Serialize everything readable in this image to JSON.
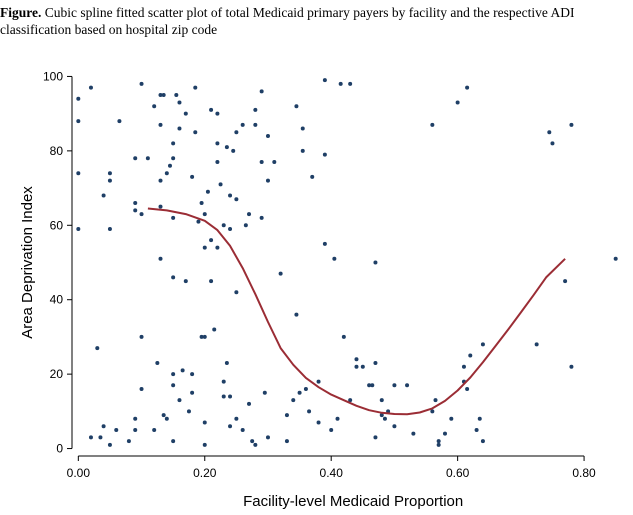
{
  "caption": {
    "prefix": "Figure.",
    "text": "Cubic spline fitted scatter plot of total Medicaid primary payers by facility and the respective ADI classification based on hospital zip code"
  },
  "chart_data": {
    "type": "scatter",
    "xlabel": "Facility-level Medicaid Proportion",
    "ylabel": "Area Deprivation Index",
    "xlim": [
      -0.01,
      0.86
    ],
    "ylim": [
      -2,
      102
    ],
    "xticks": [
      0,
      0.2,
      0.4,
      0.6,
      0.8
    ],
    "xtick_labels": [
      "0.00",
      "0.20",
      "0.40",
      "0.60",
      "0.80"
    ],
    "yticks": [
      0,
      20,
      40,
      60,
      80,
      100
    ],
    "ytick_labels": [
      "0",
      "20",
      "40",
      "60",
      "80",
      "100"
    ],
    "grid": false,
    "legend": "none",
    "colors": {
      "points": "#1f3f66",
      "spline": "#9b2d35"
    },
    "points": [
      [
        0.0,
        94
      ],
      [
        0.0,
        88
      ],
      [
        0.0,
        74
      ],
      [
        0.0,
        59
      ],
      [
        0.02,
        97
      ],
      [
        0.02,
        3
      ],
      [
        0.03,
        27
      ],
      [
        0.035,
        3
      ],
      [
        0.04,
        68
      ],
      [
        0.04,
        6
      ],
      [
        0.05,
        74
      ],
      [
        0.05,
        72
      ],
      [
        0.05,
        59
      ],
      [
        0.05,
        1
      ],
      [
        0.06,
        5
      ],
      [
        0.065,
        88
      ],
      [
        0.08,
        2
      ],
      [
        0.09,
        78
      ],
      [
        0.09,
        66
      ],
      [
        0.09,
        64
      ],
      [
        0.09,
        8
      ],
      [
        0.09,
        5
      ],
      [
        0.1,
        98
      ],
      [
        0.1,
        63
      ],
      [
        0.1,
        30
      ],
      [
        0.1,
        16
      ],
      [
        0.11,
        78
      ],
      [
        0.12,
        92
      ],
      [
        0.12,
        5
      ],
      [
        0.125,
        23
      ],
      [
        0.13,
        95
      ],
      [
        0.13,
        87
      ],
      [
        0.13,
        65
      ],
      [
        0.13,
        72
      ],
      [
        0.135,
        95
      ],
      [
        0.13,
        51
      ],
      [
        0.135,
        9
      ],
      [
        0.14,
        8
      ],
      [
        0.14,
        74
      ],
      [
        0.145,
        76
      ],
      [
        0.15,
        82
      ],
      [
        0.15,
        78
      ],
      [
        0.15,
        62
      ],
      [
        0.15,
        46
      ],
      [
        0.15,
        20
      ],
      [
        0.15,
        17
      ],
      [
        0.15,
        2
      ],
      [
        0.155,
        95
      ],
      [
        0.16,
        93
      ],
      [
        0.16,
        86
      ],
      [
        0.16,
        13
      ],
      [
        0.165,
        21
      ],
      [
        0.17,
        90
      ],
      [
        0.17,
        45
      ],
      [
        0.175,
        10
      ],
      [
        0.18,
        20
      ],
      [
        0.18,
        15
      ],
      [
        0.18,
        73
      ],
      [
        0.185,
        85
      ],
      [
        0.185,
        97
      ],
      [
        0.19,
        61
      ],
      [
        0.195,
        66
      ],
      [
        0.195,
        30
      ],
      [
        0.2,
        63
      ],
      [
        0.2,
        54
      ],
      [
        0.2,
        30
      ],
      [
        0.2,
        7
      ],
      [
        0.2,
        1
      ],
      [
        0.205,
        69
      ],
      [
        0.21,
        91
      ],
      [
        0.21,
        56
      ],
      [
        0.21,
        45
      ],
      [
        0.215,
        32
      ],
      [
        0.22,
        90
      ],
      [
        0.22,
        82
      ],
      [
        0.22,
        77
      ],
      [
        0.22,
        54
      ],
      [
        0.225,
        71
      ],
      [
        0.23,
        60
      ],
      [
        0.23,
        18
      ],
      [
        0.23,
        14
      ],
      [
        0.235,
        81
      ],
      [
        0.235,
        23
      ],
      [
        0.24,
        68
      ],
      [
        0.24,
        59
      ],
      [
        0.24,
        14
      ],
      [
        0.24,
        6
      ],
      [
        0.245,
        80
      ],
      [
        0.25,
        85
      ],
      [
        0.25,
        67
      ],
      [
        0.25,
        42
      ],
      [
        0.25,
        8
      ],
      [
        0.26,
        87
      ],
      [
        0.26,
        5
      ],
      [
        0.265,
        60
      ],
      [
        0.27,
        63
      ],
      [
        0.27,
        12
      ],
      [
        0.275,
        2
      ],
      [
        0.28,
        1
      ],
      [
        0.28,
        91
      ],
      [
        0.28,
        87
      ],
      [
        0.29,
        96
      ],
      [
        0.29,
        77
      ],
      [
        0.29,
        62
      ],
      [
        0.295,
        15
      ],
      [
        0.3,
        84
      ],
      [
        0.3,
        72
      ],
      [
        0.3,
        3
      ],
      [
        0.31,
        77
      ],
      [
        0.32,
        47
      ],
      [
        0.33,
        9
      ],
      [
        0.33,
        2
      ],
      [
        0.34,
        13
      ],
      [
        0.345,
        92
      ],
      [
        0.345,
        36
      ],
      [
        0.35,
        15
      ],
      [
        0.355,
        86
      ],
      [
        0.355,
        80
      ],
      [
        0.36,
        16
      ],
      [
        0.365,
        10
      ],
      [
        0.37,
        73
      ],
      [
        0.38,
        18
      ],
      [
        0.38,
        7
      ],
      [
        0.39,
        99
      ],
      [
        0.39,
        79
      ],
      [
        0.39,
        55
      ],
      [
        0.4,
        5
      ],
      [
        0.405,
        51
      ],
      [
        0.41,
        8
      ],
      [
        0.415,
        98
      ],
      [
        0.42,
        30
      ],
      [
        0.43,
        13
      ],
      [
        0.43,
        98
      ],
      [
        0.44,
        24
      ],
      [
        0.44,
        22
      ],
      [
        0.45,
        22
      ],
      [
        0.46,
        17
      ],
      [
        0.465,
        17
      ],
      [
        0.47,
        50
      ],
      [
        0.47,
        23
      ],
      [
        0.47,
        3
      ],
      [
        0.48,
        13
      ],
      [
        0.48,
        9
      ],
      [
        0.485,
        8
      ],
      [
        0.49,
        10
      ],
      [
        0.5,
        17
      ],
      [
        0.5,
        6
      ],
      [
        0.52,
        17
      ],
      [
        0.53,
        4
      ],
      [
        0.56,
        87
      ],
      [
        0.56,
        10
      ],
      [
        0.565,
        13
      ],
      [
        0.57,
        2
      ],
      [
        0.57,
        1
      ],
      [
        0.58,
        4
      ],
      [
        0.59,
        8
      ],
      [
        0.6,
        93
      ],
      [
        0.61,
        18
      ],
      [
        0.61,
        22
      ],
      [
        0.615,
        16
      ],
      [
        0.615,
        97
      ],
      [
        0.62,
        25
      ],
      [
        0.63,
        5
      ],
      [
        0.635,
        8
      ],
      [
        0.64,
        28
      ],
      [
        0.64,
        2
      ],
      [
        0.725,
        28
      ],
      [
        0.745,
        85
      ],
      [
        0.75,
        82
      ],
      [
        0.77,
        45
      ],
      [
        0.78,
        87
      ],
      [
        0.78,
        22
      ],
      [
        0.85,
        51
      ]
    ],
    "spline": [
      [
        0.11,
        64.5
      ],
      [
        0.14,
        64.0
      ],
      [
        0.17,
        63.0
      ],
      [
        0.2,
        61.2
      ],
      [
        0.22,
        58.7
      ],
      [
        0.24,
        54.5
      ],
      [
        0.26,
        48.5
      ],
      [
        0.28,
        41.5
      ],
      [
        0.3,
        34.0
      ],
      [
        0.32,
        27.0
      ],
      [
        0.34,
        22.5
      ],
      [
        0.36,
        19.0
      ],
      [
        0.38,
        16.5
      ],
      [
        0.4,
        14.5
      ],
      [
        0.42,
        13.0
      ],
      [
        0.44,
        11.5
      ],
      [
        0.46,
        10.3
      ],
      [
        0.48,
        9.6
      ],
      [
        0.5,
        9.3
      ],
      [
        0.52,
        9.2
      ],
      [
        0.54,
        9.7
      ],
      [
        0.56,
        10.8
      ],
      [
        0.58,
        12.8
      ],
      [
        0.6,
        15.6
      ],
      [
        0.62,
        19.1
      ],
      [
        0.64,
        23.2
      ],
      [
        0.66,
        27.6
      ],
      [
        0.68,
        32.0
      ],
      [
        0.7,
        36.6
      ],
      [
        0.72,
        41.2
      ],
      [
        0.74,
        46.0
      ],
      [
        0.77,
        51.0
      ]
    ]
  }
}
